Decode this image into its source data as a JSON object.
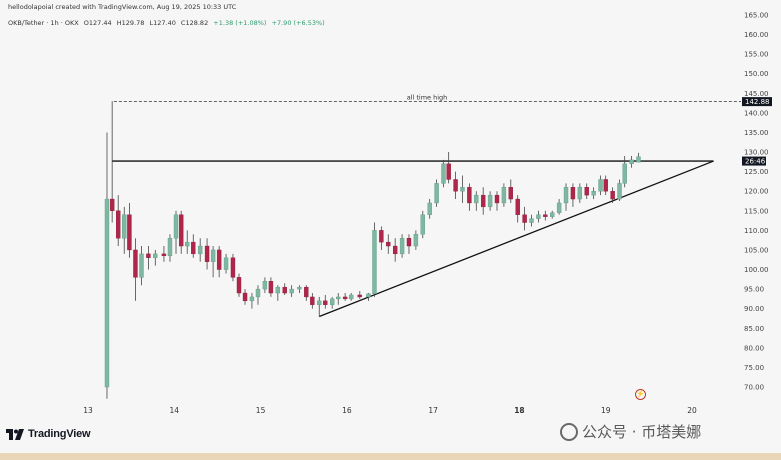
{
  "header": {
    "publisher": "hellodolapoial created with TradingView.com, Aug 19, 2025 10:33 UTC",
    "symbol": "OKB/Tether · 1h · OKX",
    "open": "O127.44",
    "high": "H129.78",
    "low": "L127.40",
    "close": "C128.82",
    "change": "+1.38 (+1.08%)",
    "volume_change": "+7.90 (+6.53%)"
  },
  "logo": {
    "text": "TradingView"
  },
  "watermark": {
    "text": "公众号 · 币塔美娜"
  },
  "colors": {
    "up": "#7fb7a2",
    "down": "#b0254a",
    "wick": "#444444",
    "line": "#111111",
    "background": "#f6f6f6"
  },
  "chart_data": {
    "type": "candlestick",
    "title": "OKB/Tether · 1h · OKX",
    "ylim": [
      67,
      166
    ],
    "y_ticks": [
      70,
      75,
      80,
      85,
      90,
      95,
      100,
      105,
      110,
      115,
      120,
      125,
      130,
      135,
      140,
      145,
      150,
      155,
      160,
      165
    ],
    "y_tick_labels": [
      "70.00",
      "75.00",
      "80.00",
      "85.00",
      "90.00",
      "95.00",
      "100.00",
      "105.00",
      "110.00",
      "115.00",
      "120.00",
      "125.00",
      "130.00",
      "135.00",
      "140.00",
      "145.00",
      "150.00",
      "155.00",
      "160.00",
      "165.00"
    ],
    "x_ticks": [
      "13",
      "14",
      "15",
      "16",
      "17",
      "18",
      "19",
      "20"
    ],
    "x_tick_days": [
      13,
      14,
      15,
      16,
      17,
      18,
      19,
      20
    ],
    "bold_x_tick": "18",
    "xlim": [
      13.0,
      20.4
    ],
    "grid": false,
    "annotations": [
      {
        "type": "hline-dashed",
        "label": "all time high",
        "y": 142.88,
        "x_start": 13.3,
        "price_label": "142.88"
      },
      {
        "type": "resistance-line",
        "y": 127.7,
        "x_start": 13.28,
        "x_end": 20.25
      },
      {
        "type": "trendline",
        "points": [
          [
            15.68,
            88.0
          ],
          [
            20.25,
            127.7
          ]
        ]
      },
      {
        "type": "price-label",
        "y": 127.7,
        "label": "26:46"
      }
    ],
    "candles": [
      {
        "t": 13.22,
        "o": 70.0,
        "h": 135.0,
        "l": 67.0,
        "c": 118.0
      },
      {
        "t": 13.28,
        "o": 118.0,
        "h": 143.0,
        "l": 112.0,
        "c": 115.0
      },
      {
        "t": 13.35,
        "o": 115.0,
        "h": 119.0,
        "l": 106.0,
        "c": 108.0
      },
      {
        "t": 13.42,
        "o": 108.0,
        "h": 116.0,
        "l": 104.0,
        "c": 114.0
      },
      {
        "t": 13.48,
        "o": 114.0,
        "h": 117.0,
        "l": 103.0,
        "c": 105.0
      },
      {
        "t": 13.55,
        "o": 105.0,
        "h": 108.0,
        "l": 92.0,
        "c": 98.0
      },
      {
        "t": 13.62,
        "o": 98.0,
        "h": 106.0,
        "l": 96.0,
        "c": 104.0
      },
      {
        "t": 13.7,
        "o": 104.0,
        "h": 106.0,
        "l": 100.0,
        "c": 103.0
      },
      {
        "t": 13.78,
        "o": 103.0,
        "h": 105.0,
        "l": 101.0,
        "c": 104.0
      },
      {
        "t": 13.88,
        "o": 104.0,
        "h": 106.0,
        "l": 102.0,
        "c": 103.5
      },
      {
        "t": 13.95,
        "o": 103.5,
        "h": 109.0,
        "l": 102.0,
        "c": 108.0
      },
      {
        "t": 14.02,
        "o": 108.0,
        "h": 115.0,
        "l": 104.0,
        "c": 114.0
      },
      {
        "t": 14.08,
        "o": 114.0,
        "h": 115.0,
        "l": 104.0,
        "c": 106.0
      },
      {
        "t": 14.15,
        "o": 106.0,
        "h": 110.0,
        "l": 104.0,
        "c": 107.0
      },
      {
        "t": 14.22,
        "o": 107.0,
        "h": 109.0,
        "l": 103.0,
        "c": 104.0
      },
      {
        "t": 14.3,
        "o": 104.0,
        "h": 108.0,
        "l": 102.0,
        "c": 106.0
      },
      {
        "t": 14.38,
        "o": 106.0,
        "h": 108.0,
        "l": 100.0,
        "c": 102.0
      },
      {
        "t": 14.45,
        "o": 102.0,
        "h": 106.0,
        "l": 98.0,
        "c": 105.0
      },
      {
        "t": 14.52,
        "o": 105.0,
        "h": 106.0,
        "l": 98.0,
        "c": 100.0
      },
      {
        "t": 14.6,
        "o": 100.0,
        "h": 104.0,
        "l": 99.0,
        "c": 103.0
      },
      {
        "t": 14.68,
        "o": 103.0,
        "h": 104.0,
        "l": 97.0,
        "c": 98.0
      },
      {
        "t": 14.75,
        "o": 98.0,
        "h": 99.0,
        "l": 93.0,
        "c": 94.0
      },
      {
        "t": 14.82,
        "o": 94.0,
        "h": 95.0,
        "l": 91.0,
        "c": 92.0
      },
      {
        "t": 14.9,
        "o": 92.0,
        "h": 94.0,
        "l": 90.0,
        "c": 93.0
      },
      {
        "t": 14.97,
        "o": 93.0,
        "h": 96.0,
        "l": 91.0,
        "c": 95.0
      },
      {
        "t": 15.05,
        "o": 95.0,
        "h": 98.0,
        "l": 94.0,
        "c": 97.0
      },
      {
        "t": 15.12,
        "o": 97.0,
        "h": 98.0,
        "l": 93.0,
        "c": 94.0
      },
      {
        "t": 15.2,
        "o": 94.0,
        "h": 96.0,
        "l": 92.0,
        "c": 95.5
      },
      {
        "t": 15.28,
        "o": 95.5,
        "h": 96.5,
        "l": 93.5,
        "c": 94.0
      },
      {
        "t": 15.36,
        "o": 94.0,
        "h": 96.0,
        "l": 93.0,
        "c": 95.0
      },
      {
        "t": 15.45,
        "o": 95.0,
        "h": 96.0,
        "l": 94.0,
        "c": 95.5
      },
      {
        "t": 15.53,
        "o": 95.5,
        "h": 96.0,
        "l": 92.0,
        "c": 93.0
      },
      {
        "t": 15.6,
        "o": 93.0,
        "h": 94.0,
        "l": 90.0,
        "c": 91.0
      },
      {
        "t": 15.68,
        "o": 91.0,
        "h": 93.0,
        "l": 88.0,
        "c": 92.0
      },
      {
        "t": 15.75,
        "o": 92.0,
        "h": 93.5,
        "l": 90.0,
        "c": 91.0
      },
      {
        "t": 15.83,
        "o": 91.0,
        "h": 93.0,
        "l": 90.0,
        "c": 92.5
      },
      {
        "t": 15.9,
        "o": 92.5,
        "h": 94.0,
        "l": 91.0,
        "c": 93.0
      },
      {
        "t": 15.98,
        "o": 93.0,
        "h": 94.0,
        "l": 92.0,
        "c": 92.5
      },
      {
        "t": 16.05,
        "o": 92.5,
        "h": 94.0,
        "l": 92.0,
        "c": 93.5
      },
      {
        "t": 16.15,
        "o": 93.5,
        "h": 94.5,
        "l": 92.5,
        "c": 93.0
      },
      {
        "t": 16.25,
        "o": 93.0,
        "h": 94.0,
        "l": 92.0,
        "c": 93.8
      },
      {
        "t": 16.32,
        "o": 93.8,
        "h": 112.0,
        "l": 93.0,
        "c": 110.0
      },
      {
        "t": 16.4,
        "o": 110.0,
        "h": 111.0,
        "l": 105.0,
        "c": 107.0
      },
      {
        "t": 16.48,
        "o": 107.0,
        "h": 109.0,
        "l": 104.0,
        "c": 106.0
      },
      {
        "t": 16.56,
        "o": 106.0,
        "h": 108.0,
        "l": 102.0,
        "c": 104.0
      },
      {
        "t": 16.64,
        "o": 104.0,
        "h": 109.0,
        "l": 103.0,
        "c": 108.0
      },
      {
        "t": 16.72,
        "o": 108.0,
        "h": 109.0,
        "l": 104.0,
        "c": 106.0
      },
      {
        "t": 16.8,
        "o": 106.0,
        "h": 110.0,
        "l": 105.0,
        "c": 109.0
      },
      {
        "t": 16.88,
        "o": 109.0,
        "h": 115.0,
        "l": 108.0,
        "c": 114.0
      },
      {
        "t": 16.96,
        "o": 114.0,
        "h": 118.0,
        "l": 113.0,
        "c": 117.0
      },
      {
        "t": 17.04,
        "o": 117.0,
        "h": 123.0,
        "l": 116.0,
        "c": 122.0
      },
      {
        "t": 17.12,
        "o": 122.0,
        "h": 128.0,
        "l": 121.0,
        "c": 127.0
      },
      {
        "t": 17.18,
        "o": 127.0,
        "h": 130.0,
        "l": 122.0,
        "c": 123.0
      },
      {
        "t": 17.26,
        "o": 123.0,
        "h": 125.0,
        "l": 118.0,
        "c": 120.0
      },
      {
        "t": 17.34,
        "o": 120.0,
        "h": 124.0,
        "l": 117.0,
        "c": 121.0
      },
      {
        "t": 17.42,
        "o": 121.0,
        "h": 122.0,
        "l": 115.0,
        "c": 117.0
      },
      {
        "t": 17.5,
        "o": 117.0,
        "h": 120.0,
        "l": 115.0,
        "c": 119.0
      },
      {
        "t": 17.58,
        "o": 119.0,
        "h": 121.0,
        "l": 114.0,
        "c": 116.0
      },
      {
        "t": 17.66,
        "o": 116.0,
        "h": 120.0,
        "l": 115.0,
        "c": 119.0
      },
      {
        "t": 17.74,
        "o": 119.0,
        "h": 120.0,
        "l": 115.0,
        "c": 117.0
      },
      {
        "t": 17.82,
        "o": 117.0,
        "h": 122.0,
        "l": 116.0,
        "c": 121.0
      },
      {
        "t": 17.9,
        "o": 121.0,
        "h": 123.0,
        "l": 117.0,
        "c": 118.0
      },
      {
        "t": 17.98,
        "o": 118.0,
        "h": 119.0,
        "l": 112.0,
        "c": 114.0
      },
      {
        "t": 18.06,
        "o": 114.0,
        "h": 116.0,
        "l": 110.0,
        "c": 112.0
      },
      {
        "t": 18.14,
        "o": 112.0,
        "h": 114.0,
        "l": 111.0,
        "c": 113.0
      },
      {
        "t": 18.22,
        "o": 113.0,
        "h": 115.0,
        "l": 112.0,
        "c": 114.0
      },
      {
        "t": 18.3,
        "o": 114.0,
        "h": 115.0,
        "l": 112.5,
        "c": 113.5
      },
      {
        "t": 18.38,
        "o": 113.5,
        "h": 115.0,
        "l": 113.0,
        "c": 114.5
      },
      {
        "t": 18.46,
        "o": 114.5,
        "h": 118.0,
        "l": 114.0,
        "c": 117.0
      },
      {
        "t": 18.54,
        "o": 117.0,
        "h": 122.0,
        "l": 115.0,
        "c": 121.0
      },
      {
        "t": 18.62,
        "o": 121.0,
        "h": 122.0,
        "l": 116.0,
        "c": 118.0
      },
      {
        "t": 18.7,
        "o": 118.0,
        "h": 122.0,
        "l": 117.0,
        "c": 121.0
      },
      {
        "t": 18.78,
        "o": 121.0,
        "h": 122.0,
        "l": 118.0,
        "c": 119.0
      },
      {
        "t": 18.86,
        "o": 119.0,
        "h": 121.0,
        "l": 118.0,
        "c": 120.0
      },
      {
        "t": 18.94,
        "o": 120.0,
        "h": 124.0,
        "l": 119.0,
        "c": 123.0
      },
      {
        "t": 19.0,
        "o": 123.0,
        "h": 124.0,
        "l": 119.0,
        "c": 120.0
      },
      {
        "t": 19.08,
        "o": 120.0,
        "h": 121.0,
        "l": 117.0,
        "c": 118.0
      },
      {
        "t": 19.16,
        "o": 118.0,
        "h": 123.0,
        "l": 117.5,
        "c": 122.0
      },
      {
        "t": 19.22,
        "o": 122.0,
        "h": 129.0,
        "l": 121.0,
        "c": 127.0
      },
      {
        "t": 19.3,
        "o": 127.0,
        "h": 129.0,
        "l": 126.0,
        "c": 128.0
      },
      {
        "t": 19.38,
        "o": 127.4,
        "h": 129.8,
        "l": 127.4,
        "c": 128.8
      }
    ]
  }
}
